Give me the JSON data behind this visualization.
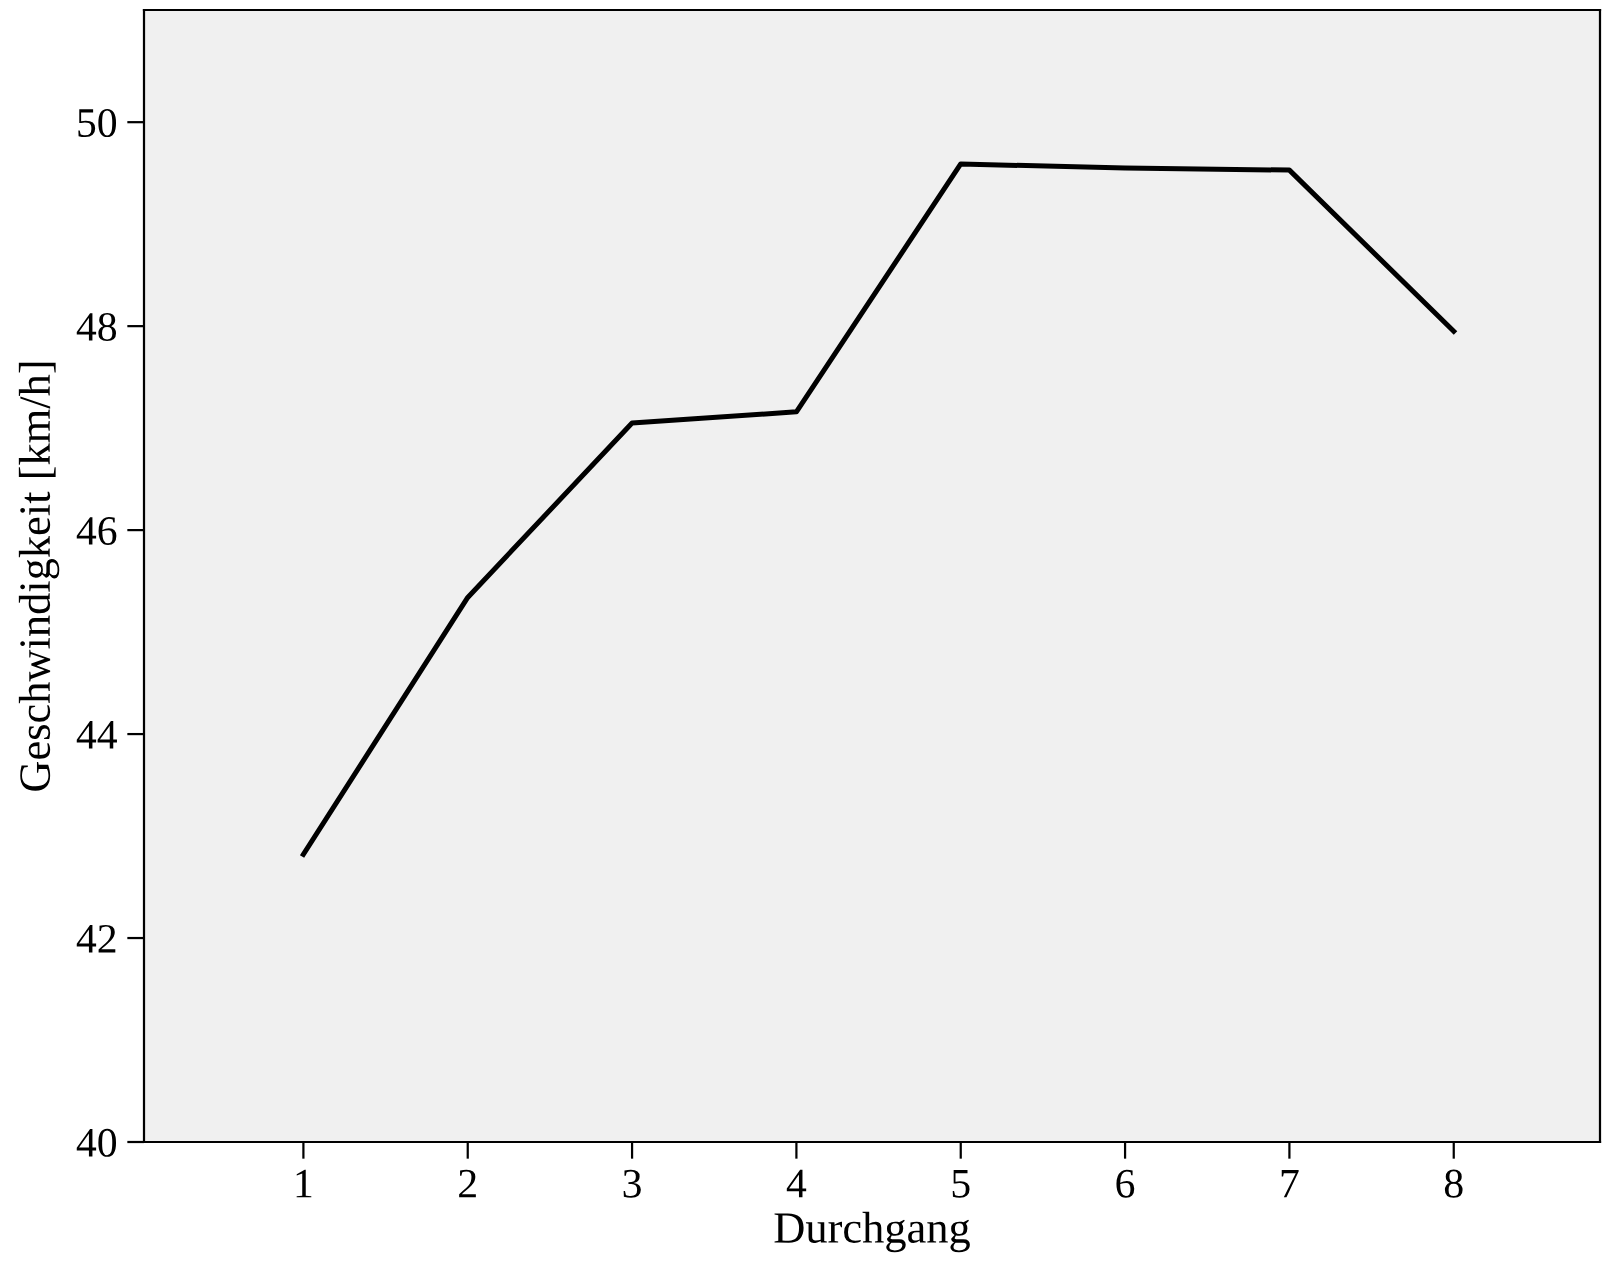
{
  "chart_data": {
    "type": "line",
    "xlabel": "Durchgang",
    "ylabel": "Geschwindigkeit [km/h]",
    "x": [
      1,
      2,
      3,
      4,
      5,
      6,
      7,
      8
    ],
    "series": [
      {
        "color": "#000000",
        "values": [
          42.82,
          45.34,
          47.05,
          47.16,
          49.59,
          49.55,
          49.53,
          47.95
        ]
      }
    ],
    "xlim": [
      0.03,
      8.89
    ],
    "xticks": [
      1,
      2,
      3,
      4,
      5,
      6,
      7,
      8
    ],
    "ylim": [
      40,
      51.1
    ],
    "yticks": [
      40,
      42,
      44,
      46,
      48,
      50
    ],
    "grid": false,
    "legend": false,
    "marker": "none",
    "line_style": "solid"
  }
}
